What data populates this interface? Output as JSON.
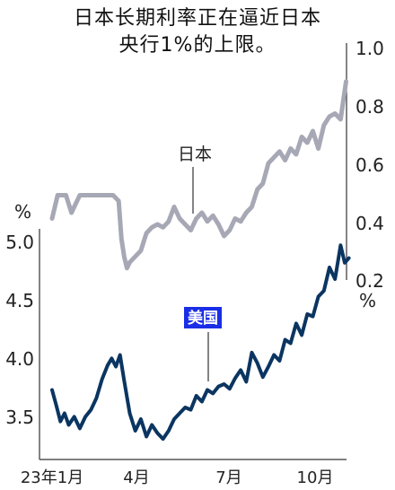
{
  "title_lines": [
    "日本长期利率正在逼近日本",
    "央行1%的上限。"
  ],
  "colors": {
    "japan": "#a7a8b5",
    "us": "#0b3561",
    "axis": "#333333",
    "us_label_bg": "#1a2ee6",
    "us_label_text": "#ffffff"
  },
  "chart_data": {
    "type": "line",
    "title": "日本长期利率正在逼近日本央行1%的上限。",
    "x_tick_labels": [
      "23年1月",
      "4月",
      "7月",
      "10月"
    ],
    "y_left": {
      "unit": "%",
      "range": [
        3.0,
        5.25
      ],
      "ticks": [
        "5.0",
        "4.5",
        "4.0",
        "3.5"
      ]
    },
    "y_right": {
      "unit": "%",
      "range": [
        0.2,
        1.0
      ],
      "ticks": [
        "1.0",
        "0.8",
        "0.6",
        "0.4",
        "0.2"
      ]
    },
    "grid": false,
    "series": [
      {
        "name": "日本",
        "axis": "right",
        "color": "#a7a8b5",
        "x": [
          0.0,
          0.2,
          0.35,
          0.5,
          0.7,
          1.0,
          1.3,
          1.6,
          1.9,
          2.2,
          2.4,
          2.5,
          2.6,
          2.7,
          2.8,
          3.0,
          3.2,
          3.4,
          3.6,
          3.8,
          4.0,
          4.2,
          4.4,
          4.6,
          4.8,
          5.0,
          5.2,
          5.4,
          5.6,
          5.8,
          6.0,
          6.2,
          6.4,
          6.6,
          6.8,
          7.0,
          7.2,
          7.4,
          7.6,
          7.8,
          8.0,
          8.2,
          8.4,
          8.6,
          8.8,
          9.0,
          9.2,
          9.4,
          9.6,
          9.8,
          10.0,
          10.2,
          10.4,
          10.6
        ],
        "values": [
          0.42,
          0.5,
          0.5,
          0.5,
          0.44,
          0.5,
          0.5,
          0.5,
          0.5,
          0.5,
          0.48,
          0.35,
          0.29,
          0.25,
          0.27,
          0.29,
          0.31,
          0.37,
          0.39,
          0.4,
          0.39,
          0.41,
          0.46,
          0.42,
          0.4,
          0.38,
          0.42,
          0.44,
          0.41,
          0.43,
          0.4,
          0.36,
          0.38,
          0.42,
          0.41,
          0.44,
          0.46,
          0.52,
          0.54,
          0.61,
          0.63,
          0.65,
          0.62,
          0.66,
          0.64,
          0.7,
          0.68,
          0.72,
          0.66,
          0.74,
          0.77,
          0.78,
          0.76,
          0.89
        ]
      },
      {
        "name": "美国",
        "axis": "left",
        "color": "#0b3561",
        "x": [
          0.0,
          0.15,
          0.3,
          0.45,
          0.6,
          0.8,
          1.0,
          1.2,
          1.4,
          1.6,
          1.8,
          2.0,
          2.15,
          2.3,
          2.45,
          2.6,
          2.8,
          3.0,
          3.2,
          3.4,
          3.6,
          3.8,
          4.0,
          4.2,
          4.4,
          4.6,
          4.8,
          5.0,
          5.2,
          5.4,
          5.6,
          5.8,
          6.0,
          6.2,
          6.4,
          6.6,
          6.8,
          7.0,
          7.2,
          7.4,
          7.6,
          7.8,
          8.0,
          8.2,
          8.4,
          8.6,
          8.8,
          9.0,
          9.2,
          9.4,
          9.6,
          9.8,
          10.0,
          10.2,
          10.4,
          10.55,
          10.7
        ],
        "values": [
          3.75,
          3.62,
          3.48,
          3.55,
          3.45,
          3.52,
          3.42,
          3.52,
          3.58,
          3.68,
          3.84,
          3.96,
          4.02,
          3.95,
          4.05,
          3.83,
          3.55,
          3.4,
          3.5,
          3.35,
          3.45,
          3.38,
          3.33,
          3.4,
          3.5,
          3.55,
          3.6,
          3.58,
          3.7,
          3.65,
          3.75,
          3.72,
          3.78,
          3.8,
          3.76,
          3.85,
          3.92,
          3.82,
          4.07,
          3.98,
          3.86,
          3.95,
          4.05,
          4.0,
          4.18,
          4.15,
          4.32,
          4.22,
          4.4,
          4.38,
          4.55,
          4.6,
          4.8,
          4.7,
          4.99,
          4.84,
          4.88
        ]
      }
    ],
    "annotations": [
      {
        "text": "日本",
        "series": "日本"
      },
      {
        "text": "美国",
        "series": "美国"
      }
    ]
  }
}
